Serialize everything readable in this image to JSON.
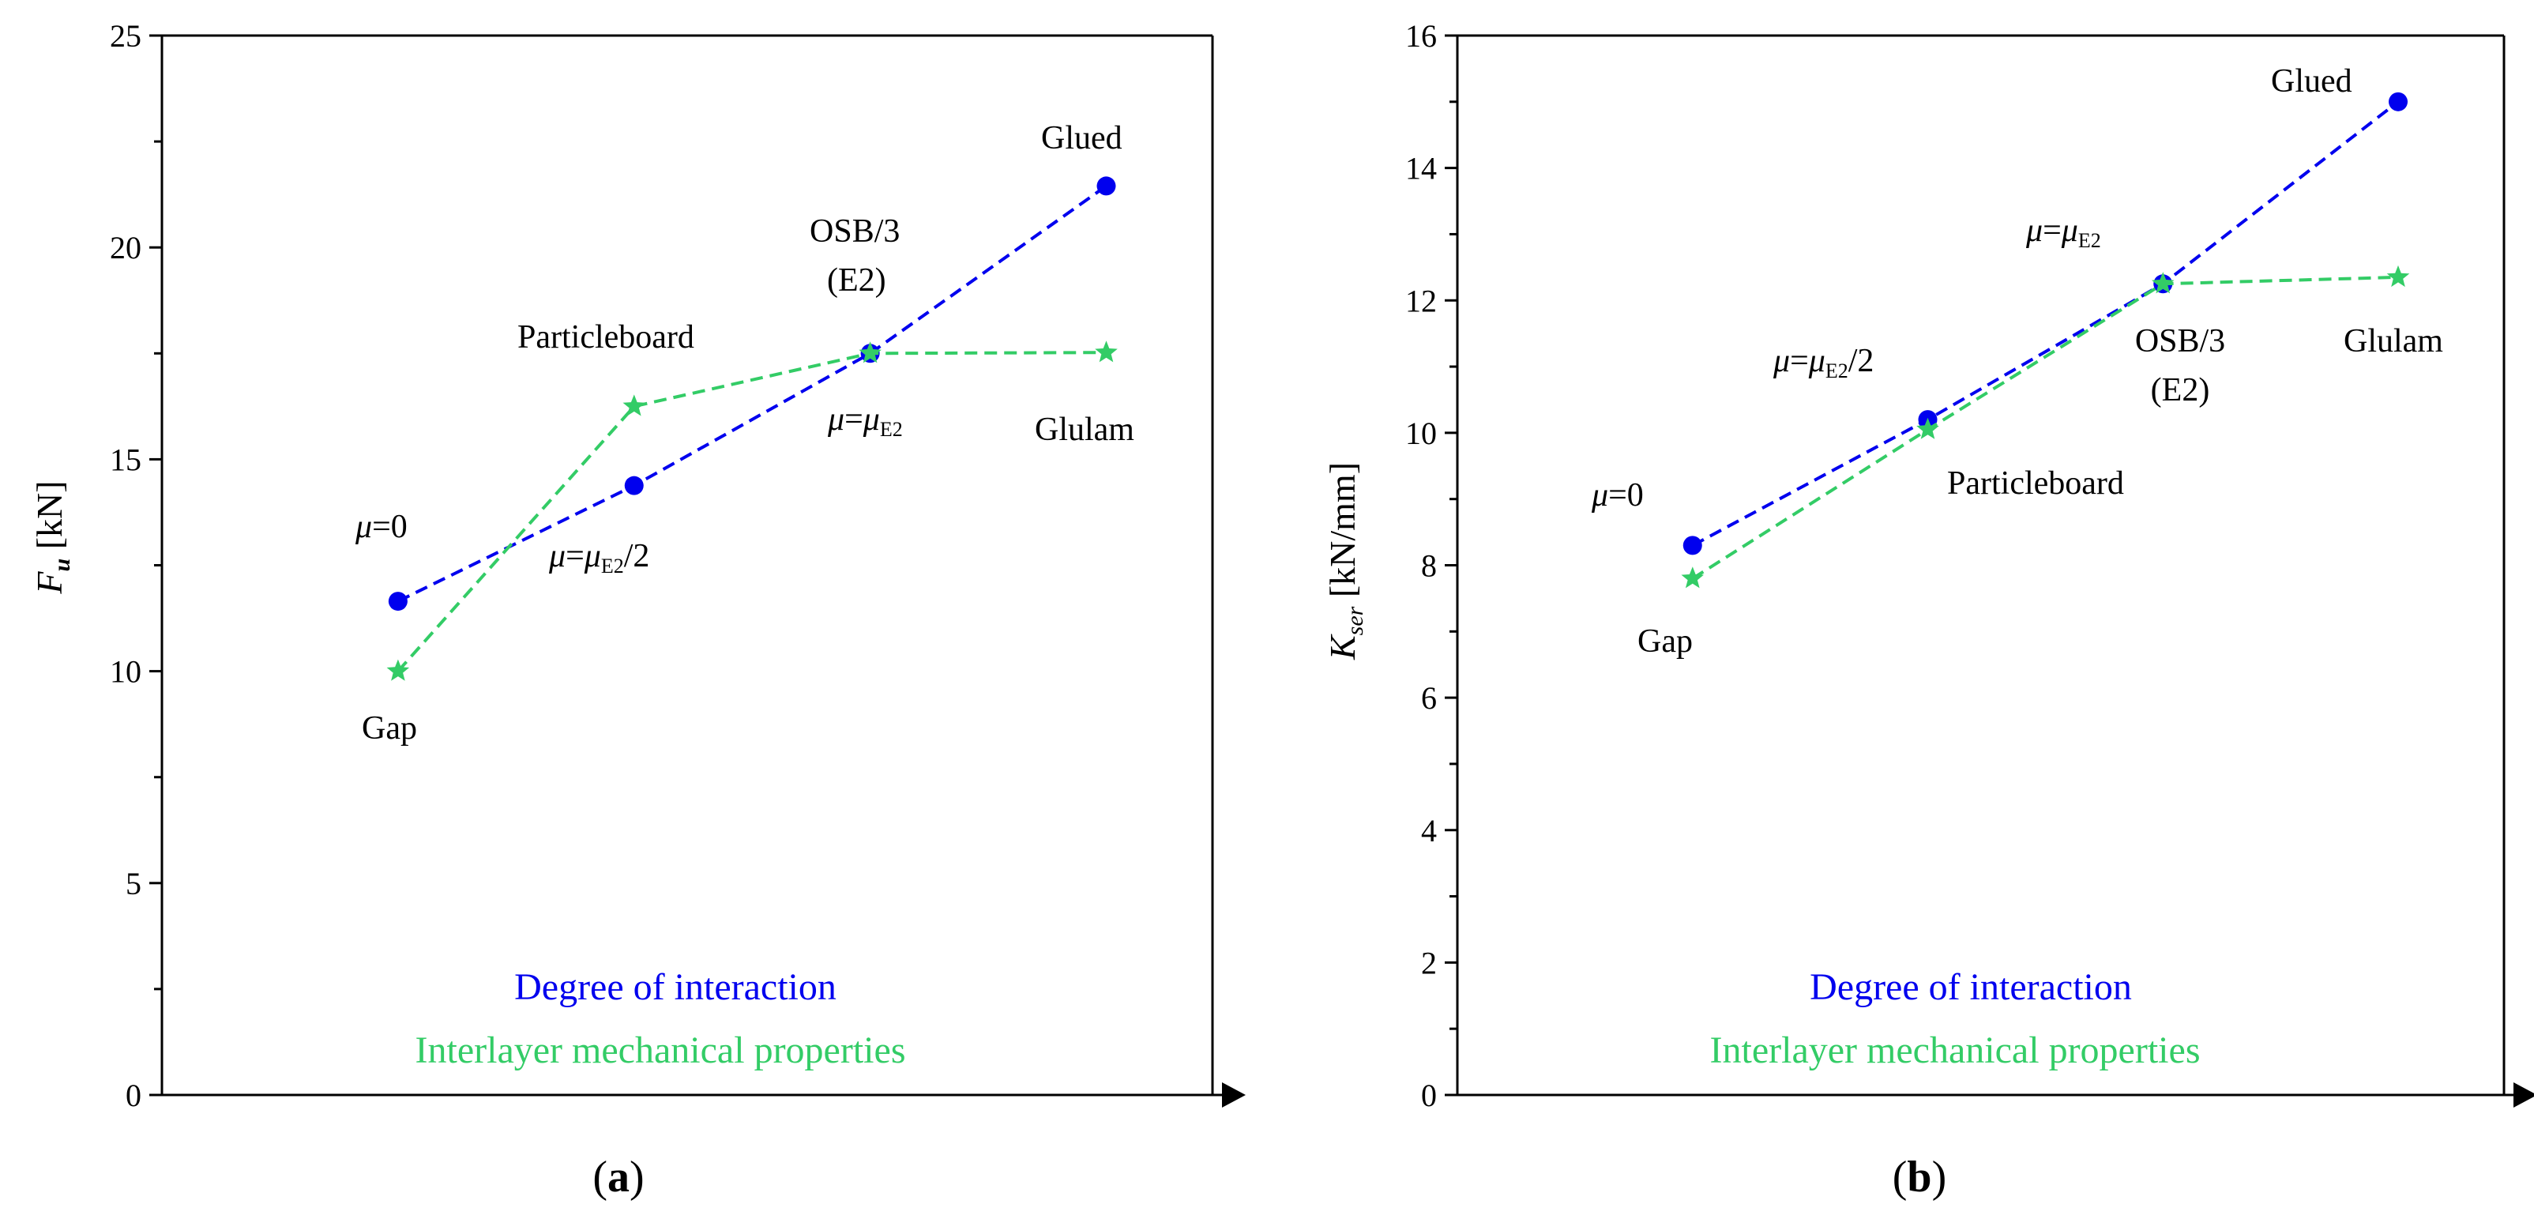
{
  "chart_data": [
    {
      "type": "line",
      "panel": "a",
      "caption": "(a)",
      "caption_letter": "a",
      "ylabel": "F",
      "ylabel_sub": "u",
      "ylabel_unit": " [kN]",
      "ylim": [
        0,
        25
      ],
      "yticks": [
        "0",
        "5",
        "10",
        "15",
        "20",
        "25"
      ],
      "ytick_values": [
        0,
        5,
        10,
        15,
        20,
        25
      ],
      "x": [
        1,
        2,
        3,
        4
      ],
      "xlim": [
        0,
        4.45
      ],
      "series": [
        {
          "name": "Degree of interaction",
          "color": "#0000ee",
          "marker": "circle",
          "values": [
            11.65,
            14.38,
            17.5,
            21.45
          ],
          "labels": [
            "μ=0",
            "μ=μE2/2",
            "μ=μE2",
            "Glued"
          ]
        },
        {
          "name": "Interlayer mechanical properties",
          "color": "#33cc66",
          "marker": "star",
          "values": [
            10.0,
            16.25,
            17.5,
            17.52
          ],
          "labels": [
            "Gap",
            "Particleboard",
            "OSB/3 (E2)",
            "Glulam"
          ]
        }
      ],
      "legend": [
        "Degree of interaction",
        "Interlayer mechanical properties"
      ]
    },
    {
      "type": "line",
      "panel": "b",
      "caption": "(b)",
      "caption_letter": "b",
      "ylabel": "K",
      "ylabel_sub": "ser",
      "ylabel_unit": " [kN/mm]",
      "ylim": [
        0,
        16
      ],
      "yticks": [
        "0",
        "2",
        "4",
        "6",
        "8",
        "10",
        "12",
        "14",
        "16"
      ],
      "ytick_values": [
        0,
        2,
        4,
        6,
        8,
        10,
        12,
        14,
        16
      ],
      "x": [
        1,
        2,
        3,
        4
      ],
      "xlim": [
        0,
        4.45
      ],
      "series": [
        {
          "name": "Degree of interaction",
          "color": "#0000ee",
          "marker": "circle",
          "values": [
            8.3,
            10.2,
            12.25,
            15.0
          ],
          "labels": [
            "μ=0",
            "μ=μE2/2",
            "μ=μE2",
            "Glued"
          ]
        },
        {
          "name": "Interlayer mechanical properties",
          "color": "#33cc66",
          "marker": "star",
          "values": [
            7.8,
            10.05,
            12.25,
            12.35
          ],
          "labels": [
            "Gap",
            "Particleboard",
            "OSB/3 (E2)",
            "Glulam"
          ]
        }
      ],
      "legend": [
        "Degree of interaction",
        "Interlayer mechanical properties"
      ]
    }
  ],
  "text": {
    "mu": "μ",
    "eq": "=",
    "zero": "0",
    "sub_e2": "E2",
    "half": "/2",
    "glued": "Glued",
    "osb_line1": "OSB/3",
    "osb_line2": "(E2)",
    "particleboard": "Particleboard",
    "glulam": "Glulam",
    "gap": "Gap",
    "legend_blue": "Degree of interaction",
    "legend_green": "Interlayer mechanical properties"
  },
  "colors": {
    "blue": "#0000ee",
    "green": "#33cc66",
    "axis": "#000000"
  }
}
